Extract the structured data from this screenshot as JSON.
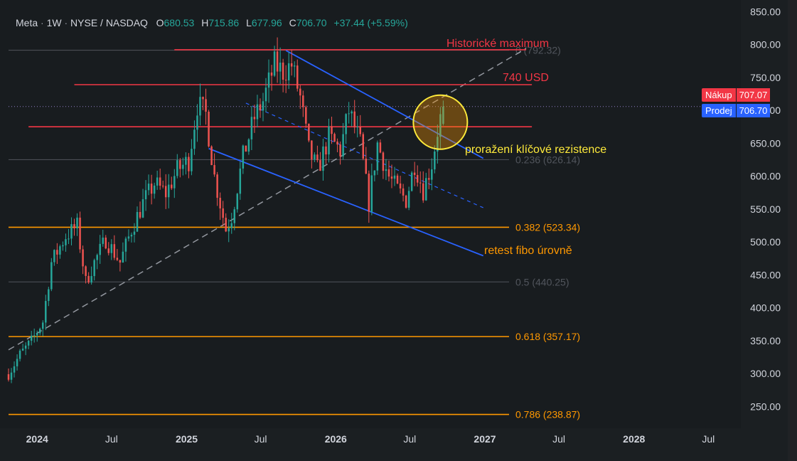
{
  "legend": {
    "symbol": "Meta",
    "interval": "1W",
    "exchange": "NYSE / NASDAQ",
    "open_label": "O",
    "open": "680.53",
    "high_label": "H",
    "high": "715.86",
    "low_label": "L",
    "low": "677.96",
    "close_label": "C",
    "close": "706.70",
    "change": "+37.44 (+5.59%)"
  },
  "price_tags": {
    "buy_label": "Nákup",
    "buy_value": "707.07",
    "sell_label": "Prodej",
    "sell_value": "706.70"
  },
  "colors": {
    "bg": "#181c1f",
    "up": "#26a69a",
    "down": "#ef5350",
    "fib_orange": "#ff9800",
    "fib_gray": "#787b86",
    "resistance_red": "#f23645",
    "channel_blue": "#2962ff",
    "circle_yellow": "#ffeb3b",
    "buy_tag": "#f23645",
    "sell_tag": "#2962ff"
  },
  "chart_data": {
    "type": "candlestick",
    "symbol": "Meta",
    "interval": "1W",
    "ylim": [
      220,
      860
    ],
    "x_range": [
      "2023-10-23",
      "2028-09-15"
    ],
    "y_ticks": [
      "250.00",
      "300.00",
      "350.00",
      "400.00",
      "450.00",
      "500.00",
      "550.00",
      "600.00",
      "650.00",
      "700.00",
      "750.00",
      "800.00",
      "850.00"
    ],
    "x_ticks": [
      {
        "label": "2024",
        "date": "2024-01-01",
        "bold": true
      },
      {
        "label": "Jul",
        "date": "2024-07-01",
        "bold": false
      },
      {
        "label": "2025",
        "date": "2025-01-01",
        "bold": true
      },
      {
        "label": "Jul",
        "date": "2025-07-01",
        "bold": false
      },
      {
        "label": "2026",
        "date": "2026-01-01",
        "bold": true
      },
      {
        "label": "Jul",
        "date": "2026-07-01",
        "bold": false
      },
      {
        "label": "2027",
        "date": "2027-01-01",
        "bold": true
      },
      {
        "label": "Jul",
        "date": "2027-07-01",
        "bold": false
      },
      {
        "label": "2028",
        "date": "2028-01-01",
        "bold": true
      },
      {
        "label": "Jul",
        "date": "2028-07-01",
        "bold": false
      }
    ],
    "price_anchors": [
      [
        "2023-10-23",
        300
      ],
      [
        "2023-11-20",
        330
      ],
      [
        "2023-12-18",
        350
      ],
      [
        "2024-01-15",
        380
      ],
      [
        "2024-02-05",
        470
      ],
      [
        "2024-03-11",
        510
      ],
      [
        "2024-04-08",
        525
      ],
      [
        "2024-04-29",
        440
      ],
      [
        "2024-05-20",
        470
      ],
      [
        "2024-06-17",
        505
      ],
      [
        "2024-07-22",
        470
      ],
      [
        "2024-08-19",
        520
      ],
      [
        "2024-09-16",
        560
      ],
      [
        "2024-10-14",
        590
      ],
      [
        "2024-11-11",
        575
      ],
      [
        "2024-12-09",
        610
      ],
      [
        "2025-01-06",
        625
      ],
      [
        "2025-01-27",
        710
      ],
      [
        "2025-02-17",
        695
      ],
      [
        "2025-03-10",
        600
      ],
      [
        "2025-04-07",
        520
      ],
      [
        "2025-04-21",
        540
      ],
      [
        "2025-05-19",
        630
      ],
      [
        "2025-06-16",
        690
      ],
      [
        "2025-07-07",
        715
      ],
      [
        "2025-08-04",
        770
      ],
      [
        "2025-08-25",
        760
      ],
      [
        "2025-09-15",
        770
      ],
      [
        "2025-10-06",
        720
      ],
      [
        "2025-10-27",
        640
      ],
      [
        "2025-11-17",
        610
      ],
      [
        "2025-12-15",
        660
      ],
      [
        "2026-01-12",
        640
      ],
      [
        "2026-02-02",
        700
      ],
      [
        "2026-03-02",
        650
      ],
      [
        "2026-03-23",
        560
      ],
      [
        "2026-04-13",
        650
      ],
      [
        "2026-05-11",
        600
      ],
      [
        "2026-06-01",
        580
      ],
      [
        "2026-06-22",
        565
      ],
      [
        "2026-07-13",
        620
      ],
      [
        "2026-08-03",
        580
      ],
      [
        "2026-08-24",
        620
      ],
      [
        "2026-09-07",
        670
      ],
      [
        "2026-09-21",
        706.7
      ]
    ],
    "last_candle": {
      "date": "2026-09-21",
      "open": 680.53,
      "high": 715.86,
      "low": 677.96,
      "close": 706.7
    },
    "fibonacci": [
      {
        "level": "0",
        "price": 792.32,
        "label": "0 (792.32)",
        "color": "#787b86"
      },
      {
        "level": "0.236",
        "price": 626.14,
        "label": "0.236 (626.14)",
        "color": "#787b86"
      },
      {
        "level": "0.382",
        "price": 523.34,
        "label": "0.382 (523.34)",
        "color": "#ff9800"
      },
      {
        "level": "0.5",
        "price": 440.25,
        "label": "0.5 (440.25)",
        "color": "#787b86"
      },
      {
        "level": "0.618",
        "price": 357.17,
        "label": "0.618 (357.17)",
        "color": "#ff9800"
      },
      {
        "level": "0.786",
        "price": 238.87,
        "label": "0.786 (238.87)",
        "color": "#ff9800"
      }
    ],
    "resistance_lines": [
      {
        "price": 793,
        "from": "2024-12-02",
        "to": "2027-04-12",
        "label": "Historické maximum"
      },
      {
        "price": 740,
        "from": "2024-04-01",
        "to": "2027-04-26",
        "label": "740 USD"
      },
      {
        "price": 676,
        "from": "2023-12-11",
        "to": "2027-04-26",
        "label": ""
      }
    ],
    "channel": {
      "upper": [
        [
          "2025-09-01",
          792
        ],
        [
          "2026-12-28",
          628
        ]
      ],
      "lower": [
        [
          "2025-02-24",
          643
        ],
        [
          "2026-12-28",
          480
        ]
      ],
      "middle": [
        [
          "2025-05-26",
          712
        ],
        [
          "2026-12-28",
          553
        ]
      ]
    },
    "trendline": [
      [
        "2023-10-23",
        337
      ],
      [
        "2027-04-12",
        795
      ]
    ],
    "current_price": 706.7,
    "annotations": [
      {
        "text": "Historické maximum",
        "color": "#f23645"
      },
      {
        "text": "740 USD",
        "color": "#f23645"
      },
      {
        "text": "proražení klíčové rezistence",
        "color": "#ffeb3b"
      },
      {
        "text": "retest fibo úrovně",
        "color": "#ff9800"
      }
    ]
  }
}
